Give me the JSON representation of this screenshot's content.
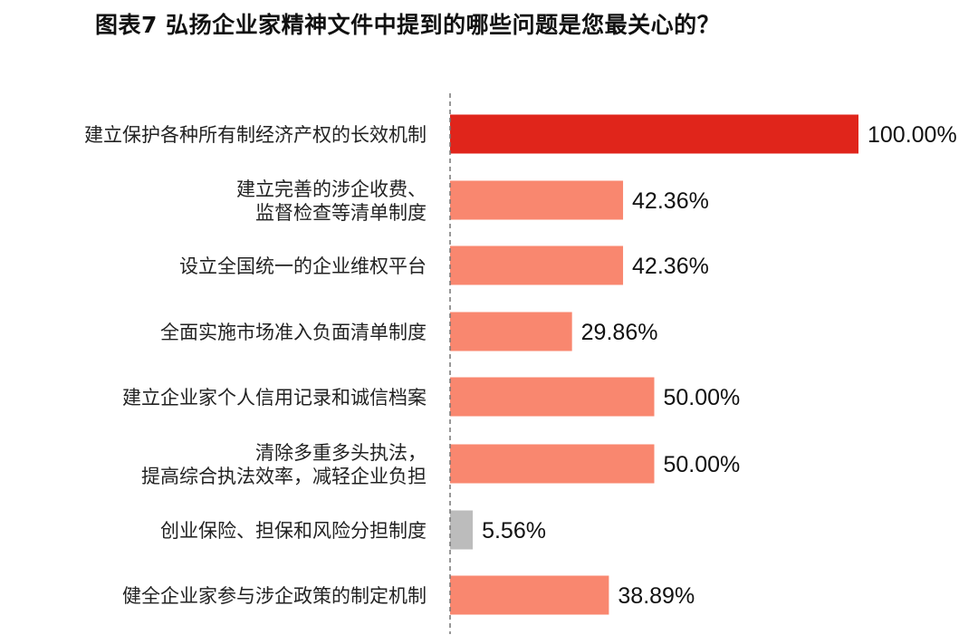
{
  "chart_data": {
    "type": "bar",
    "orientation": "horizontal",
    "title": "图表7  弘扬企业家精神文件中提到的哪些问题是您最关心的？",
    "xlabel": "",
    "ylabel": "",
    "xlim": [
      0,
      100
    ],
    "grid": false,
    "legend": "none",
    "value_suffix": "%",
    "categories": [
      [
        "建立保护各种所有制经济产权的长效机制"
      ],
      [
        "建立完善的涉企收费、",
        "监督检查等清单制度"
      ],
      [
        "设立全国统一的企业维权平台"
      ],
      [
        "全面实施市场准入负面清单制度"
      ],
      [
        "建立企业家个人信用记录和诚信档案"
      ],
      [
        "清除多重多头执法，",
        "提高综合执法效率，减轻企业负担"
      ],
      [
        "创业保险、担保和风险分担制度"
      ],
      [
        "健全企业家参与涉企政策的制定机制"
      ]
    ],
    "values": [
      100.0,
      42.36,
      42.36,
      29.86,
      50.0,
      50.0,
      5.56,
      38.89
    ],
    "value_labels": [
      "100.00%",
      "42.36%",
      "42.36%",
      "29.86%",
      "50.00%",
      "50.00%",
      "5.56%",
      "38.89%"
    ],
    "colors": [
      "#e0251b",
      "#f9876f",
      "#f9876f",
      "#f9876f",
      "#f9876f",
      "#f9876f",
      "#bcbcbc",
      "#f9876f"
    ],
    "axis_line_style": "dashed",
    "axis_line_color": "#777777"
  }
}
